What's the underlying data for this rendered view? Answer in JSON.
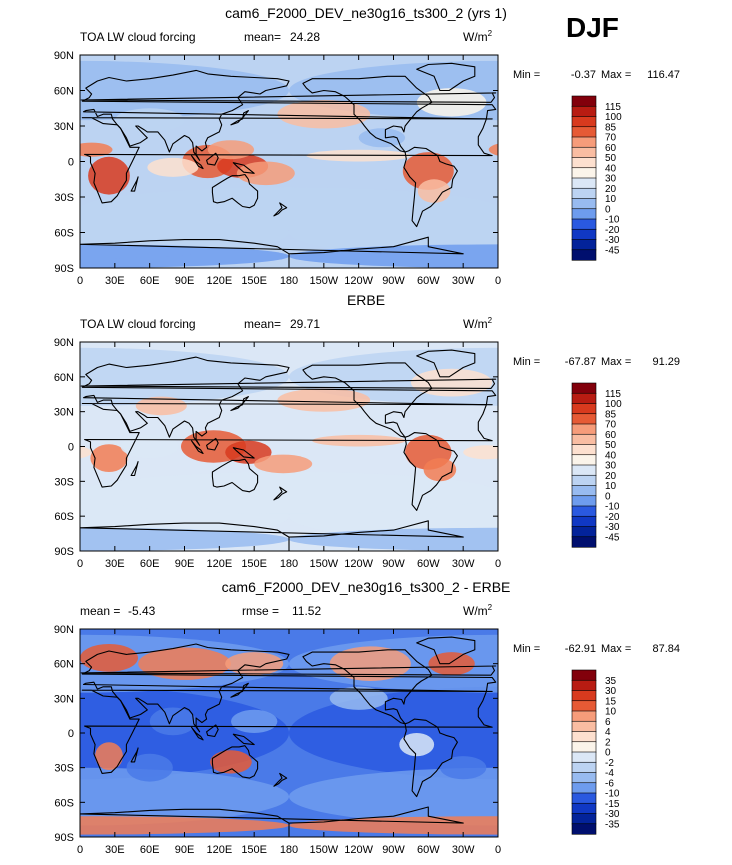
{
  "season": "DJF",
  "tick_labels": {
    "x": [
      "0",
      "30E",
      "60E",
      "90E",
      "120E",
      "150E",
      "180",
      "150W",
      "120W",
      "90W",
      "60W",
      "30W",
      "0"
    ],
    "y": [
      "90N",
      "60N",
      "30N",
      "0",
      "30S",
      "60S",
      "90S"
    ]
  },
  "palette": {
    "standard_colors": [
      "#82000b",
      "#b81c12",
      "#d83a1e",
      "#e65a35",
      "#f27c53",
      "#f69c7a",
      "#f9bda2",
      "#fde0cf",
      "#fbf4ea",
      "#dbe7f6",
      "#bcd3f2",
      "#98bbf0",
      "#6e9cee",
      "#4a7ae8",
      "#2a59e0",
      "#1038c4",
      "#03239a",
      "#000f6e"
    ],
    "diff_colors": [
      "#82000b",
      "#b81c12",
      "#d83a1e",
      "#e65a35",
      "#f27c53",
      "#f69c7a",
      "#f9bda2",
      "#fde0cf",
      "#fbf4ea",
      "#dbe7f6",
      "#bcd3f2",
      "#98bbf0",
      "#6e9cee",
      "#4a7ae8",
      "#2a59e0",
      "#1038c4",
      "#03239a",
      "#000f6e"
    ]
  },
  "chart_data": [
    {
      "type": "heatmap",
      "title": "cam6_F2000_DEV_ne30g16_ts300_2 (yrs 1)",
      "subtitle_left": "TOA LW cloud forcing",
      "stat1_label": "mean=",
      "stat1_value": "24.28",
      "stat2_label": "",
      "stat2_value": "",
      "units": "W/m",
      "units_sup": "2",
      "minmax": {
        "min_label": "Min =",
        "min": "-0.37",
        "max_label": "Max =",
        "max": "116.47"
      },
      "colorbar_levels": [
        "115",
        "100",
        "85",
        "70",
        "60",
        "50",
        "40",
        "30",
        "20",
        "10",
        "0",
        "-10",
        "-20",
        "-30",
        "-45"
      ],
      "xlim": [
        0,
        360
      ],
      "ylim": [
        -90,
        90
      ]
    },
    {
      "type": "heatmap",
      "title": "ERBE",
      "subtitle_left": "TOA LW cloud forcing",
      "stat1_label": "mean=",
      "stat1_value": "29.71",
      "stat2_label": "",
      "stat2_value": "",
      "units": "W/m",
      "units_sup": "2",
      "minmax": {
        "min_label": "Min =",
        "min": "-67.87",
        "max_label": "Max =",
        "max": "91.29"
      },
      "colorbar_levels": [
        "115",
        "100",
        "85",
        "70",
        "60",
        "50",
        "40",
        "30",
        "20",
        "10",
        "0",
        "-10",
        "-20",
        "-30",
        "-45"
      ],
      "xlim": [
        0,
        360
      ],
      "ylim": [
        -90,
        90
      ]
    },
    {
      "type": "heatmap",
      "title": "cam6_F2000_DEV_ne30g16_ts300_2 - ERBE",
      "subtitle_left": "",
      "stat1_label": "mean =",
      "stat1_value": "-5.43",
      "stat2_label": "rmse =",
      "stat2_value": "11.52",
      "units": "W/m",
      "units_sup": "2",
      "minmax": {
        "min_label": "Min =",
        "min": "-62.91",
        "max_label": "Max =",
        "max": "87.84"
      },
      "colorbar_levels": [
        "35",
        "30",
        "15",
        "10",
        "6",
        "4",
        "2",
        "0",
        "-2",
        "-4",
        "-6",
        "-10",
        "-15",
        "-30",
        "-35"
      ],
      "xlim": [
        0,
        360
      ],
      "ylim": [
        -90,
        90
      ]
    }
  ]
}
